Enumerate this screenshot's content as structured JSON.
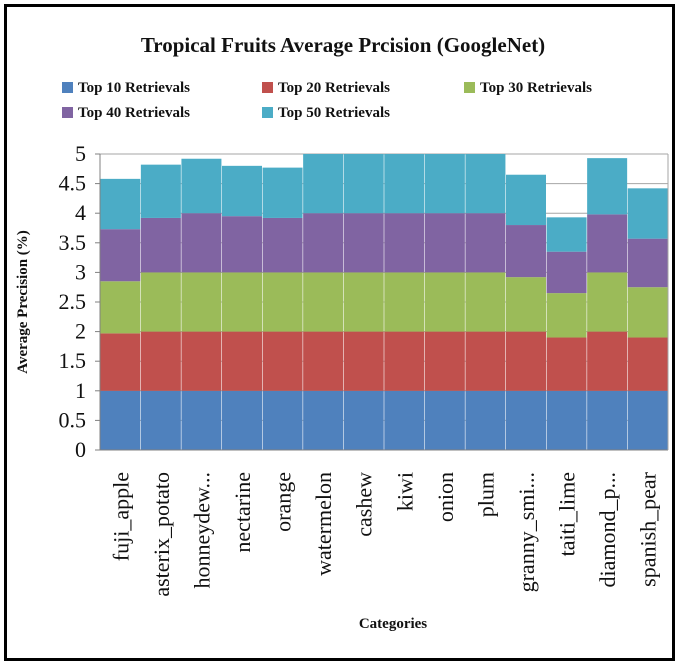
{
  "chart_data": {
    "type": "bar",
    "stacked": true,
    "title": "Tropical Fruits Average Prcision  (GoogleNet)",
    "xlabel": "Categories",
    "ylabel": "Average Precision (%)",
    "ylim": [
      0,
      5
    ],
    "yticks": [
      "0",
      "0.5",
      "1",
      "1.5",
      "2",
      "2.5",
      "3",
      "3.5",
      "4",
      "4.5",
      "5"
    ],
    "legend_position": "top",
    "categories": [
      "fuji_apple",
      "asterix_potato",
      "honneydew...",
      "nectarine",
      "orange",
      "watermelon",
      "cashew",
      "kiwi",
      "onion",
      "plum",
      "granny_smi...",
      "taiti_lime",
      "diamond_p...",
      "spanish_pear"
    ],
    "series": [
      {
        "name": "Top 10 Retrievals",
        "color": "#4f81bd",
        "values": [
          1,
          1,
          1,
          1,
          1,
          1,
          1,
          1,
          1,
          1,
          1,
          1,
          1,
          1
        ]
      },
      {
        "name": "Top 20 Retrievals",
        "color": "#c0504d",
        "values": [
          0.97,
          1,
          1,
          1,
          1,
          1,
          1,
          1,
          1,
          1,
          1,
          0.9,
          1,
          0.9
        ]
      },
      {
        "name": "Top 30 Retrievals",
        "color": "#9bbb59",
        "values": [
          0.88,
          1,
          1,
          1,
          1,
          1,
          1,
          1,
          1,
          1,
          0.92,
          0.75,
          1,
          0.85
        ]
      },
      {
        "name": "Top 40 Retrievals",
        "color": "#8064a2",
        "values": [
          0.88,
          0.92,
          1,
          0.95,
          0.92,
          1,
          1,
          1,
          1,
          1,
          0.88,
          0.7,
          0.98,
          0.82
        ]
      },
      {
        "name": "Top 50 Retrievals",
        "color": "#4bacc6",
        "values": [
          0.85,
          0.9,
          0.92,
          0.85,
          0.85,
          1,
          1,
          1,
          1,
          1,
          0.85,
          0.58,
          0.95,
          0.85
        ]
      }
    ]
  }
}
